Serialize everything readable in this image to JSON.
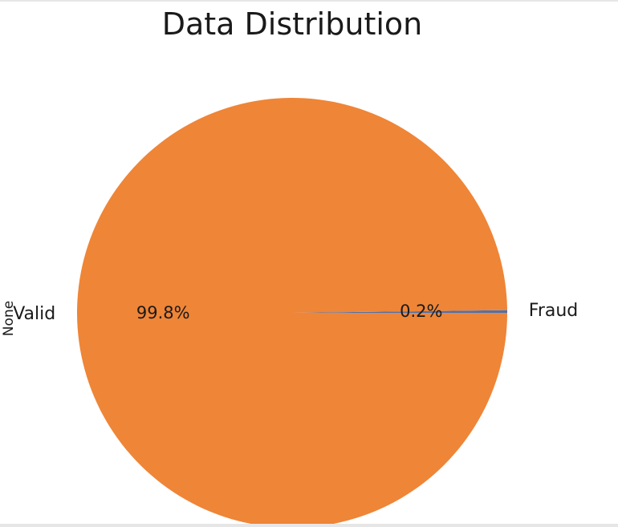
{
  "chart_data": {
    "type": "pie",
    "title": "Data Distribution",
    "ylabel": "None",
    "slices": [
      {
        "label": "Fraud",
        "value": 0.2,
        "pct_label": "0.2%",
        "color": "#4c72b0"
      },
      {
        "label": "Valid",
        "value": 99.8,
        "pct_label": "99.8%",
        "color": "#ef8537"
      }
    ]
  }
}
